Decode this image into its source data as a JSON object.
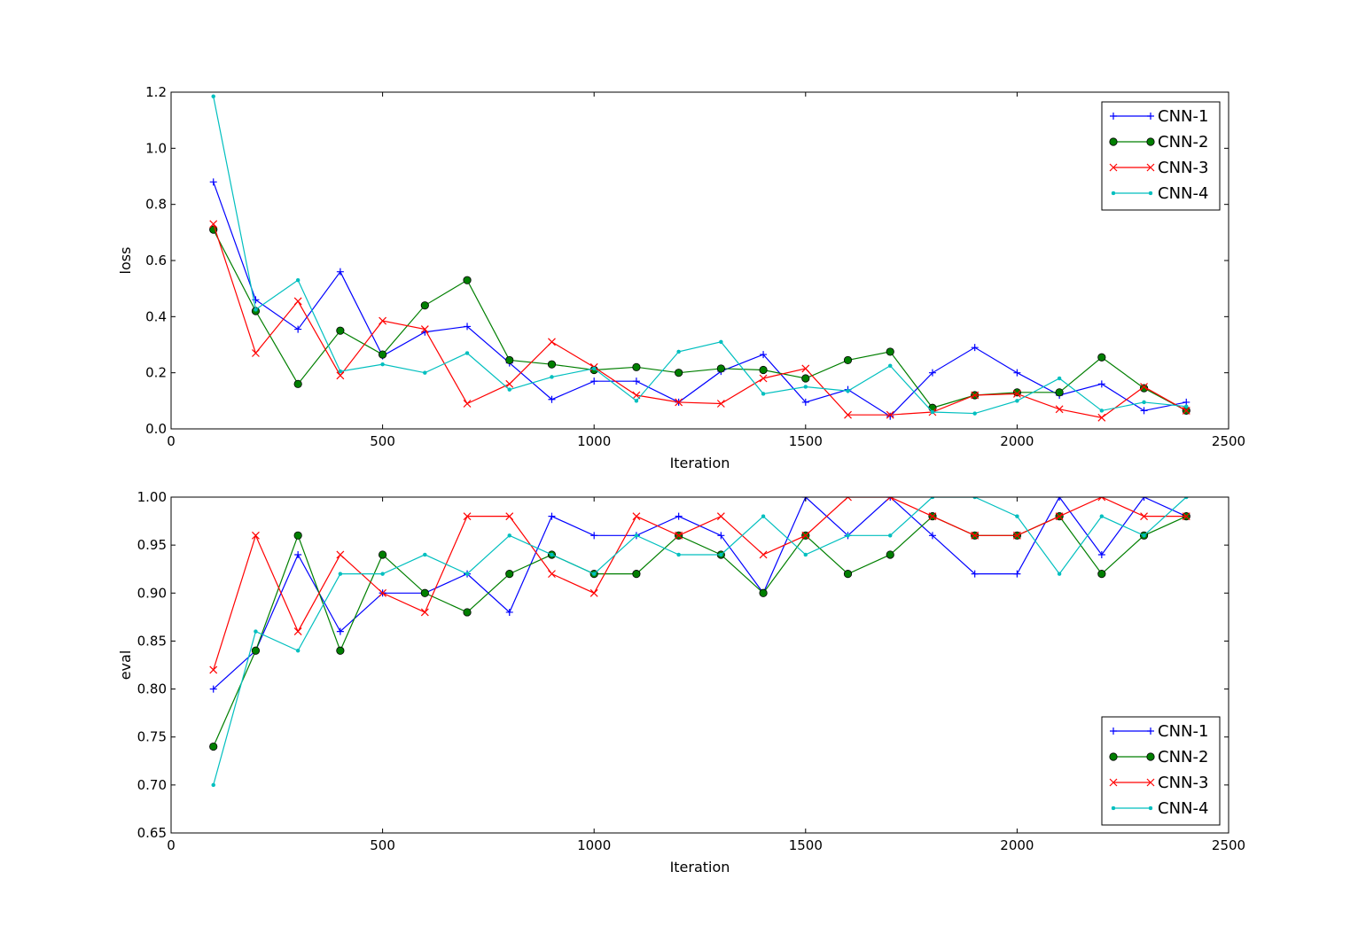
{
  "chart_data": [
    {
      "type": "line",
      "xlabel": "Iteration",
      "ylabel": "loss",
      "xlim": [
        0,
        2500
      ],
      "ylim": [
        0,
        1.2
      ],
      "xticks": [
        0,
        500,
        1000,
        1500,
        2000,
        2500
      ],
      "yticks": [
        0.0,
        0.2,
        0.4,
        0.6,
        0.8,
        1.0,
        1.2
      ],
      "xtick_labels": [
        "0",
        "500",
        "1000",
        "1500",
        "2000",
        "2500"
      ],
      "ytick_labels": [
        "0.0",
        "0.2",
        "0.4",
        "0.6",
        "0.8",
        "1.0",
        "1.2"
      ],
      "legend_position": "top-right",
      "x": [
        100,
        200,
        300,
        400,
        500,
        600,
        700,
        800,
        900,
        1000,
        1100,
        1200,
        1300,
        1400,
        1500,
        1600,
        1700,
        1800,
        1900,
        2000,
        2100,
        2200,
        2300,
        2400
      ],
      "series": [
        {
          "name": "CNN-1",
          "color": "#0000ff",
          "marker": "plus",
          "values": [
            0.88,
            0.46,
            0.355,
            0.56,
            0.26,
            0.345,
            0.365,
            0.235,
            0.105,
            0.17,
            0.17,
            0.095,
            0.205,
            0.265,
            0.095,
            0.14,
            0.045,
            0.2,
            0.29,
            0.2,
            0.12,
            0.16,
            0.065,
            0.095
          ]
        },
        {
          "name": "CNN-2",
          "color": "#007f00",
          "marker": "circle",
          "values": [
            0.71,
            0.42,
            0.16,
            0.35,
            0.265,
            0.44,
            0.53,
            0.245,
            0.23,
            0.21,
            0.22,
            0.2,
            0.215,
            0.21,
            0.18,
            0.245,
            0.275,
            0.075,
            0.12,
            0.13,
            0.13,
            0.255,
            0.145,
            0.065
          ]
        },
        {
          "name": "CNN-3",
          "color": "#ff0000",
          "marker": "x",
          "values": [
            0.73,
            0.27,
            0.455,
            0.19,
            0.385,
            0.355,
            0.09,
            0.16,
            0.31,
            0.22,
            0.12,
            0.095,
            0.09,
            0.18,
            0.215,
            0.05,
            0.05,
            0.06,
            0.12,
            0.125,
            0.07,
            0.04,
            0.15,
            0.065
          ]
        },
        {
          "name": "CNN-4",
          "color": "#00bfbf",
          "marker": "dot",
          "values": [
            1.185,
            0.425,
            0.53,
            0.205,
            0.23,
            0.2,
            0.27,
            0.14,
            0.185,
            0.215,
            0.1,
            0.275,
            0.31,
            0.125,
            0.15,
            0.135,
            0.225,
            0.06,
            0.055,
            0.1,
            0.18,
            0.065,
            0.095,
            0.08
          ]
        }
      ]
    },
    {
      "type": "line",
      "xlabel": "Iteration",
      "ylabel": "eval",
      "xlim": [
        0,
        2500
      ],
      "ylim": [
        0.65,
        1.0
      ],
      "xticks": [
        0,
        500,
        1000,
        1500,
        2000,
        2500
      ],
      "yticks": [
        0.65,
        0.7,
        0.75,
        0.8,
        0.85,
        0.9,
        0.95,
        1.0
      ],
      "xtick_labels": [
        "0",
        "500",
        "1000",
        "1500",
        "2000",
        "2500"
      ],
      "ytick_labels": [
        "0.65",
        "0.70",
        "0.75",
        "0.80",
        "0.85",
        "0.90",
        "0.95",
        "1.00"
      ],
      "legend_position": "bottom-right",
      "x": [
        100,
        200,
        300,
        400,
        500,
        600,
        700,
        800,
        900,
        1000,
        1100,
        1200,
        1300,
        1400,
        1500,
        1600,
        1700,
        1800,
        1900,
        2000,
        2100,
        2200,
        2300,
        2400
      ],
      "series": [
        {
          "name": "CNN-1",
          "color": "#0000ff",
          "marker": "plus",
          "values": [
            0.8,
            0.84,
            0.94,
            0.86,
            0.9,
            0.9,
            0.92,
            0.88,
            0.98,
            0.96,
            0.96,
            0.98,
            0.96,
            0.9,
            1.0,
            0.96,
            1.0,
            0.96,
            0.92,
            0.92,
            1.0,
            0.94,
            1.0,
            0.98
          ]
        },
        {
          "name": "CNN-2",
          "color": "#007f00",
          "marker": "circle",
          "values": [
            0.74,
            0.84,
            0.96,
            0.84,
            0.94,
            0.9,
            0.88,
            0.92,
            0.94,
            0.92,
            0.92,
            0.96,
            0.94,
            0.9,
            0.96,
            0.92,
            0.94,
            0.98,
            0.96,
            0.96,
            0.98,
            0.92,
            0.96,
            0.98
          ]
        },
        {
          "name": "CNN-3",
          "color": "#ff0000",
          "marker": "x",
          "values": [
            0.82,
            0.96,
            0.86,
            0.94,
            0.9,
            0.88,
            0.98,
            0.98,
            0.92,
            0.9,
            0.98,
            0.96,
            0.98,
            0.94,
            0.96,
            1.0,
            1.0,
            0.98,
            0.96,
            0.96,
            0.98,
            1.0,
            0.98,
            0.98
          ]
        },
        {
          "name": "CNN-4",
          "color": "#00bfbf",
          "marker": "dot",
          "values": [
            0.7,
            0.86,
            0.84,
            0.92,
            0.92,
            0.94,
            0.92,
            0.96,
            0.94,
            0.92,
            0.96,
            0.94,
            0.94,
            0.98,
            0.94,
            0.96,
            0.96,
            1.0,
            1.0,
            0.98,
            0.92,
            0.98,
            0.96,
            1.0
          ]
        }
      ]
    }
  ]
}
